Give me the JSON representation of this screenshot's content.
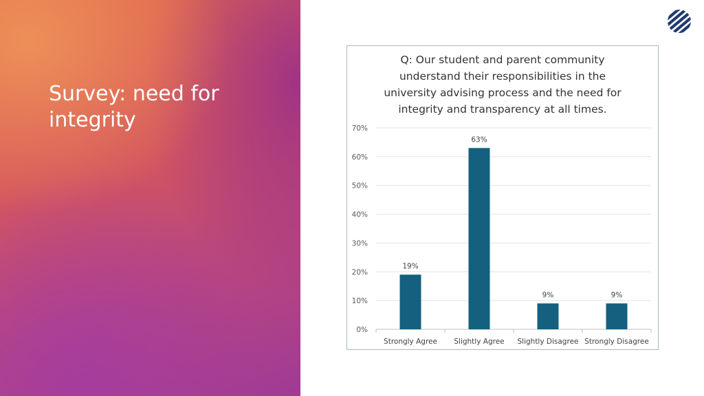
{
  "slide": {
    "title": "Survey: need for integrity",
    "logo_icon": "striped-circle-logo",
    "logo_color": "#1f3a6e"
  },
  "chart_data": {
    "type": "bar",
    "title_lines": [
      "Q: Our student and parent community",
      "understand their responsibilities in the",
      "university advising process and the need for",
      "integrity and transparency at all times."
    ],
    "categories": [
      "Strongly Agree",
      "Slightly Agree",
      "Slightly Disagree",
      "Strongly Disagree"
    ],
    "values": [
      19,
      63,
      9,
      9
    ],
    "data_labels": [
      "19%",
      "63%",
      "9%",
      "9%"
    ],
    "yticks": [
      0,
      10,
      20,
      30,
      40,
      50,
      60,
      70
    ],
    "ytick_labels": [
      "0%",
      "10%",
      "20%",
      "30%",
      "40%",
      "50%",
      "60%",
      "70%"
    ],
    "ylim": [
      0,
      70
    ],
    "grid": true,
    "bar_color": "#14607e",
    "legend": "none"
  }
}
